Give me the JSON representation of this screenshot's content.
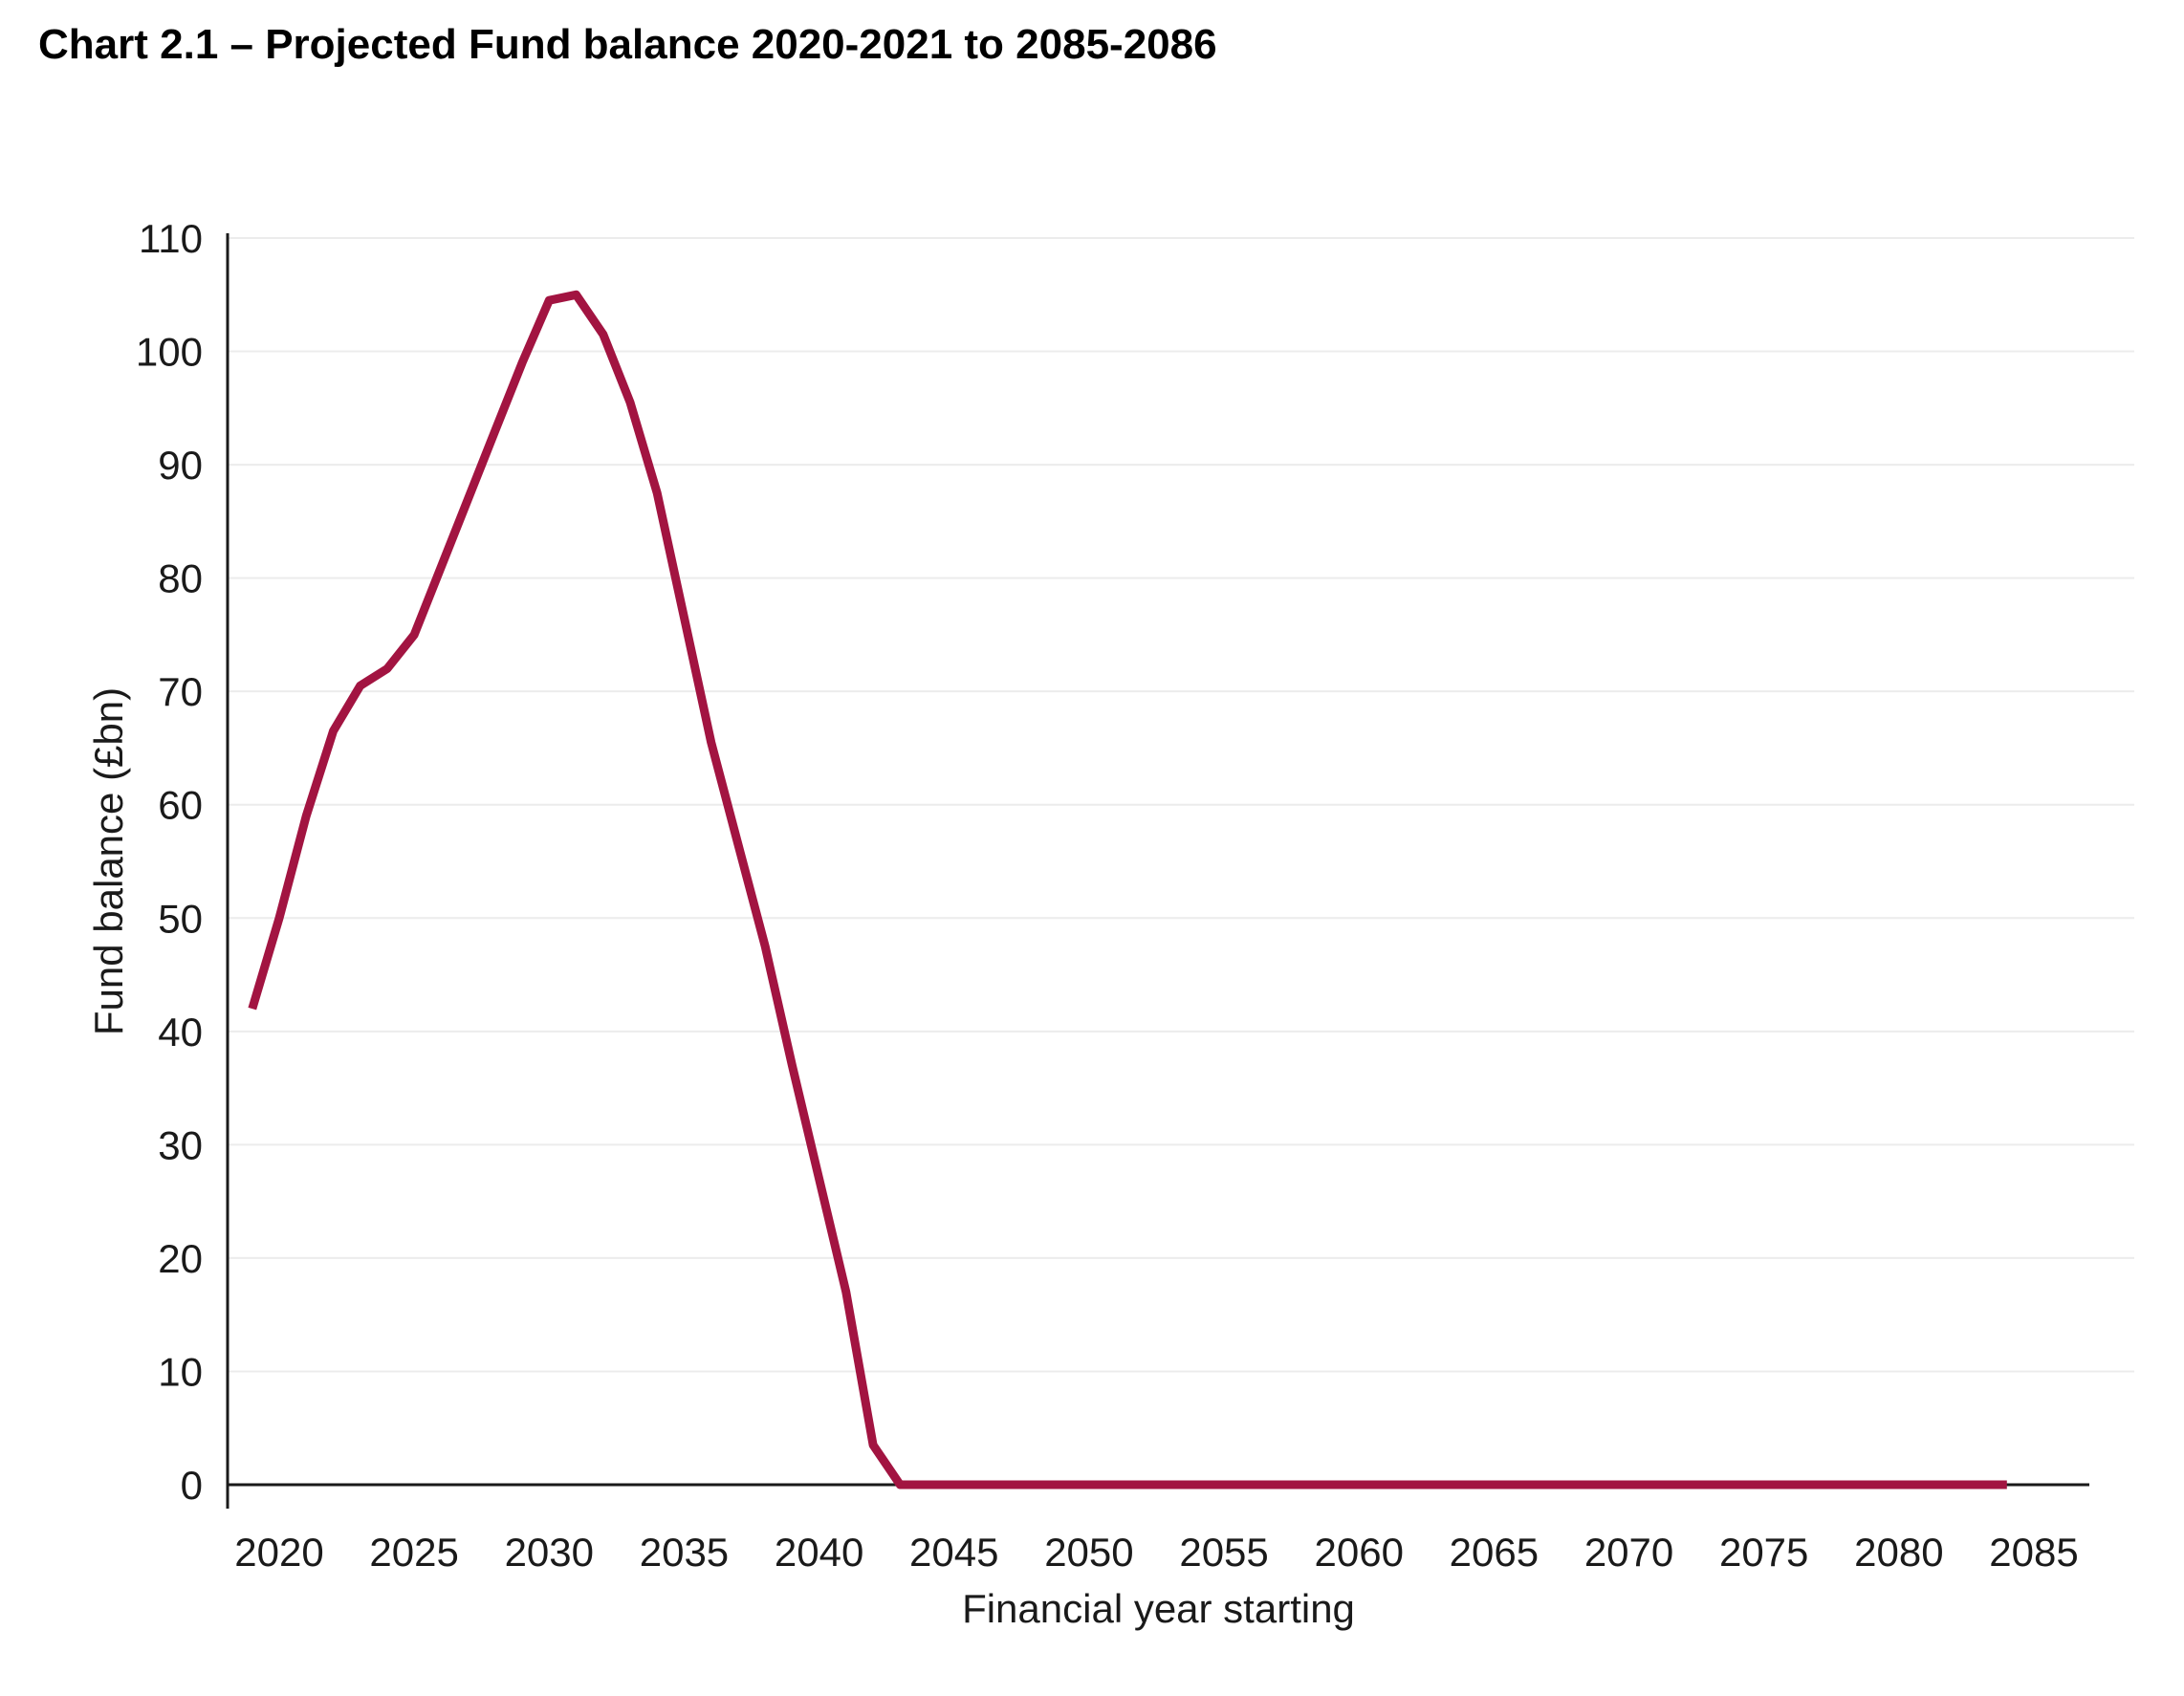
{
  "page": {
    "background_color": "#ffffff"
  },
  "chart": {
    "title": "Chart 2.1 – Projected Fund balance 2020-2021 to 2085-2086"
  },
  "chart_data": {
    "type": "line",
    "title": "Chart 2.1 – Projected Fund balance 2020-2021 to 2085-2086",
    "xlabel": "Financial year starting",
    "ylabel": "Fund balance (£bn)",
    "series_name": "Projected Fund balance",
    "grid": "horizontal",
    "legend_position": "none",
    "ylim": [
      0,
      110
    ],
    "ytick_interval": 10,
    "yticks": [
      0,
      10,
      20,
      30,
      40,
      50,
      60,
      70,
      80,
      90,
      100,
      110
    ],
    "xticks": [
      2020,
      2025,
      2030,
      2035,
      2040,
      2045,
      2050,
      2055,
      2060,
      2065,
      2070,
      2075,
      2080,
      2085
    ],
    "line_color": "#A21441",
    "gridline_color": "#ECECEC",
    "axis_color": "#1a1a1a",
    "line_width": 9,
    "years": [
      2019,
      2020,
      2021,
      2022,
      2023,
      2024,
      2025,
      2026,
      2027,
      2028,
      2029,
      2030,
      2031,
      2032,
      2033,
      2034,
      2035,
      2036,
      2037,
      2038,
      2039,
      2040,
      2041,
      2042,
      2043,
      2044,
      2045,
      2046,
      2047,
      2048,
      2049,
      2050,
      2051,
      2052,
      2053,
      2054,
      2055,
      2056,
      2057,
      2058,
      2059,
      2060,
      2061,
      2062,
      2063,
      2064,
      2065,
      2066,
      2067,
      2068,
      2069,
      2070,
      2071,
      2072,
      2073,
      2074,
      2075,
      2076,
      2077,
      2078,
      2079,
      2080,
      2081,
      2082,
      2083,
      2084
    ],
    "values": [
      42,
      50,
      59,
      66.5,
      70.5,
      72,
      75,
      81,
      87,
      93,
      99,
      104.5,
      105,
      101.5,
      95.5,
      87.5,
      76.5,
      65.5,
      56.5,
      47.5,
      37,
      27,
      17,
      3.5,
      0,
      0,
      0,
      0,
      0,
      0,
      0,
      0,
      0,
      0,
      0,
      0,
      0,
      0,
      0,
      0,
      0,
      0,
      0,
      0,
      0,
      0,
      0,
      0,
      0,
      0,
      0,
      0,
      0,
      0,
      0,
      0,
      0,
      0,
      0,
      0,
      0,
      0,
      0,
      0,
      0,
      0
    ]
  }
}
